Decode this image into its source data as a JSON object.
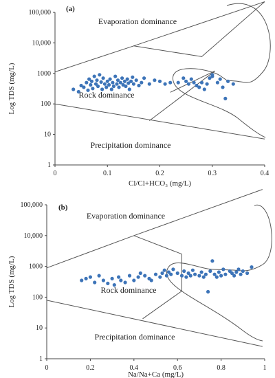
{
  "chart_data": [
    {
      "type": "scatter",
      "panel_label": "(a)",
      "xlabel": "Cl/Cl+HCO₃ (mg/L)",
      "ylabel": "Log TDS (mg/L)",
      "xlim": [
        0,
        0.4
      ],
      "ylim": [
        1,
        100000
      ],
      "y_scale": "log",
      "x_ticks": [
        "0",
        "0.1",
        "0.2",
        "0.3",
        "0.4"
      ],
      "y_ticks": [
        "1",
        "10",
        "100",
        "1000",
        "10,000",
        "100,000"
      ],
      "regions": [
        "Evaporation dominance",
        "Rock dominance",
        "Precipitation dominance"
      ],
      "marker_color": "#3d74b8",
      "points": [
        [
          0.035,
          300
        ],
        [
          0.045,
          250
        ],
        [
          0.05,
          400
        ],
        [
          0.055,
          350
        ],
        [
          0.06,
          500
        ],
        [
          0.063,
          280
        ],
        [
          0.065,
          650
        ],
        [
          0.068,
          420
        ],
        [
          0.07,
          550
        ],
        [
          0.072,
          320
        ],
        [
          0.075,
          800
        ],
        [
          0.078,
          450
        ],
        [
          0.08,
          600
        ],
        [
          0.082,
          380
        ],
        [
          0.085,
          900
        ],
        [
          0.088,
          520
        ],
        [
          0.09,
          300
        ],
        [
          0.092,
          700
        ],
        [
          0.095,
          450
        ],
        [
          0.098,
          350
        ],
        [
          0.1,
          550
        ],
        [
          0.103,
          420
        ],
        [
          0.105,
          650
        ],
        [
          0.108,
          300
        ],
        [
          0.11,
          500
        ],
        [
          0.112,
          380
        ],
        [
          0.115,
          800
        ],
        [
          0.118,
          450
        ],
        [
          0.12,
          600
        ],
        [
          0.122,
          350
        ],
        [
          0.125,
          500
        ],
        [
          0.128,
          700
        ],
        [
          0.13,
          420
        ],
        [
          0.133,
          550
        ],
        [
          0.135,
          380
        ],
        [
          0.138,
          650
        ],
        [
          0.14,
          480
        ],
        [
          0.142,
          300
        ],
        [
          0.145,
          550
        ],
        [
          0.148,
          750
        ],
        [
          0.15,
          450
        ],
        [
          0.155,
          600
        ],
        [
          0.16,
          400
        ],
        [
          0.165,
          500
        ],
        [
          0.17,
          700
        ],
        [
          0.18,
          450
        ],
        [
          0.19,
          600
        ],
        [
          0.2,
          550
        ],
        [
          0.21,
          450
        ],
        [
          0.22,
          500
        ],
        [
          0.235,
          500
        ],
        [
          0.245,
          700
        ],
        [
          0.25,
          550
        ],
        [
          0.255,
          450
        ],
        [
          0.26,
          650
        ],
        [
          0.265,
          500
        ],
        [
          0.27,
          400
        ],
        [
          0.275,
          350
        ],
        [
          0.28,
          500
        ],
        [
          0.285,
          300
        ],
        [
          0.29,
          450
        ],
        [
          0.295,
          700
        ],
        [
          0.3,
          900
        ],
        [
          0.31,
          500
        ],
        [
          0.315,
          650
        ],
        [
          0.32,
          350
        ],
        [
          0.325,
          150
        ],
        [
          0.33,
          550
        ],
        [
          0.34,
          450
        ],
        [
          0.3,
          800
        ]
      ]
    },
    {
      "type": "scatter",
      "panel_label": "(b)",
      "xlabel": "Na/Na+Ca (mg/L)",
      "ylabel": "Log TDS (mg/L)",
      "xlim": [
        0,
        1
      ],
      "ylim": [
        1,
        100000
      ],
      "y_scale": "log",
      "x_ticks": [
        "0",
        "0.2",
        "0.4",
        "0.6",
        "0.8",
        "1"
      ],
      "y_ticks": [
        "1",
        "10",
        "100",
        "1000",
        "10,000",
        "100,000"
      ],
      "regions": [
        "Evaporation dominance",
        "Rock dominance",
        "Precipitation dominance"
      ],
      "marker_color": "#3d74b8",
      "points": [
        [
          0.16,
          350
        ],
        [
          0.18,
          400
        ],
        [
          0.2,
          450
        ],
        [
          0.22,
          300
        ],
        [
          0.24,
          500
        ],
        [
          0.26,
          350
        ],
        [
          0.28,
          280
        ],
        [
          0.3,
          400
        ],
        [
          0.31,
          250
        ],
        [
          0.33,
          450
        ],
        [
          0.34,
          350
        ],
        [
          0.36,
          300
        ],
        [
          0.38,
          500
        ],
        [
          0.4,
          350
        ],
        [
          0.42,
          450
        ],
        [
          0.43,
          600
        ],
        [
          0.45,
          500
        ],
        [
          0.47,
          400
        ],
        [
          0.48,
          350
        ],
        [
          0.5,
          550
        ],
        [
          0.52,
          450
        ],
        [
          0.53,
          600
        ],
        [
          0.54,
          750
        ],
        [
          0.55,
          500
        ],
        [
          0.56,
          650
        ],
        [
          0.57,
          550
        ],
        [
          0.58,
          800
        ],
        [
          0.6,
          600
        ],
        [
          0.62,
          500
        ],
        [
          0.63,
          700
        ],
        [
          0.64,
          450
        ],
        [
          0.65,
          600
        ],
        [
          0.66,
          500
        ],
        [
          0.67,
          750
        ],
        [
          0.68,
          550
        ],
        [
          0.7,
          500
        ],
        [
          0.71,
          650
        ],
        [
          0.72,
          450
        ],
        [
          0.73,
          550
        ],
        [
          0.74,
          150
        ],
        [
          0.75,
          700
        ],
        [
          0.76,
          1500
        ],
        [
          0.77,
          550
        ],
        [
          0.78,
          450
        ],
        [
          0.79,
          650
        ],
        [
          0.8,
          500
        ],
        [
          0.81,
          800
        ],
        [
          0.82,
          550
        ],
        [
          0.84,
          700
        ],
        [
          0.85,
          600
        ],
        [
          0.86,
          500
        ],
        [
          0.87,
          650
        ],
        [
          0.88,
          800
        ],
        [
          0.89,
          550
        ],
        [
          0.9,
          700
        ],
        [
          0.92,
          600
        ],
        [
          0.94,
          950
        ]
      ]
    }
  ]
}
